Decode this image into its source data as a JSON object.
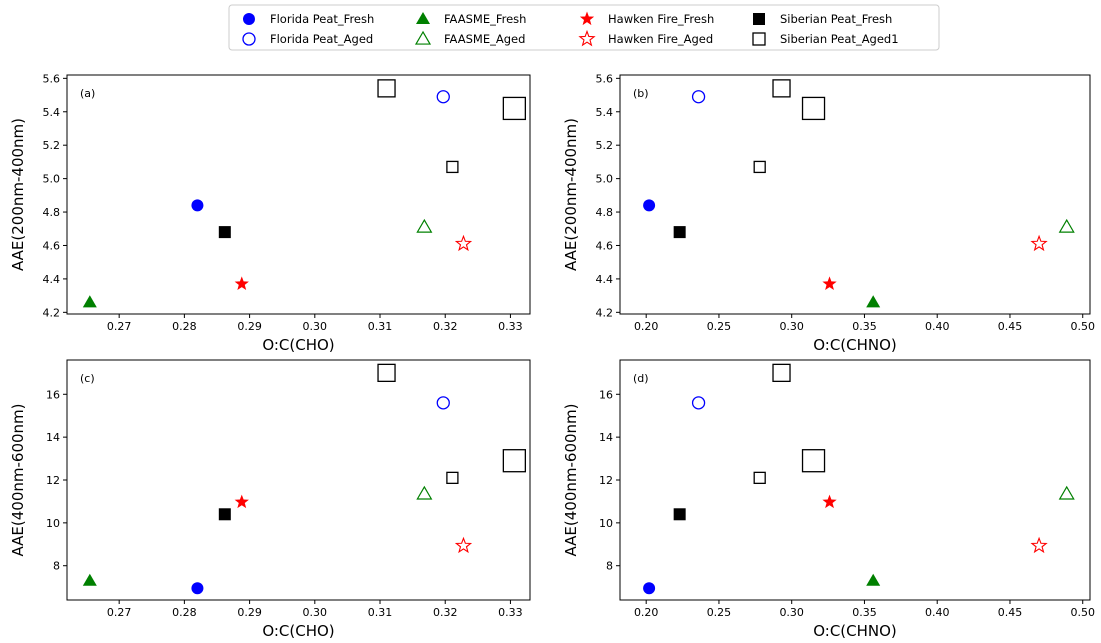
{
  "legend": [
    {
      "name": "Florida Peat_Fresh",
      "marker": "circle",
      "color": "#0000ff",
      "filled": true
    },
    {
      "name": "Florida Peat_Aged",
      "marker": "circle",
      "color": "#0000ff",
      "filled": false
    },
    {
      "name": "FAASME_Fresh",
      "marker": "triangle",
      "color": "#008000",
      "filled": true
    },
    {
      "name": "FAASME_Aged",
      "marker": "triangle",
      "color": "#008000",
      "filled": false
    },
    {
      "name": "Hawken Fire_Fresh",
      "marker": "star",
      "color": "#ff0000",
      "filled": true
    },
    {
      "name": "Hawken Fire_Aged",
      "marker": "star",
      "color": "#ff0000",
      "filled": false
    },
    {
      "name": "Siberian Peat_Fresh",
      "marker": "square",
      "color": "#000000",
      "filled": true
    },
    {
      "name": "Siberian Peat_Aged1",
      "marker": "square",
      "color": "#000000",
      "filled": false
    }
  ],
  "chart_data": [
    {
      "type": "scatter",
      "panel_label": "(a)",
      "xlabel": "O:C(CHO)",
      "ylabel": "AAE(200nm-400nm)",
      "xlim": [
        0.262,
        0.333
      ],
      "ylim": [
        4.19,
        5.62
      ],
      "xticks": [
        0.27,
        0.28,
        0.29,
        0.3,
        0.31,
        0.32,
        0.33
      ],
      "xtick_labels": [
        "0.27",
        "0.28",
        "0.29",
        "0.30",
        "0.31",
        "0.32",
        "0.33"
      ],
      "yticks": [
        4.2,
        4.4,
        4.6,
        4.8,
        5.0,
        5.2,
        5.4,
        5.6
      ],
      "ytick_labels": [
        "4.2",
        "4.4",
        "4.6",
        "4.8",
        "5.0",
        "5.2",
        "5.4",
        "5.6"
      ],
      "points": [
        {
          "series": "Florida Peat_Fresh",
          "x": 0.282,
          "y": 4.84
        },
        {
          "series": "Florida Peat_Aged",
          "x": 0.3197,
          "y": 5.49
        },
        {
          "series": "FAASME_Fresh",
          "x": 0.2655,
          "y": 4.26
        },
        {
          "series": "FAASME_Aged",
          "x": 0.3168,
          "y": 4.71
        },
        {
          "series": "Hawken Fire_Fresh",
          "x": 0.2888,
          "y": 4.37
        },
        {
          "series": "Hawken Fire_Aged",
          "x": 0.3228,
          "y": 4.61
        },
        {
          "series": "Siberian Peat_Fresh",
          "x": 0.2862,
          "y": 4.68
        },
        {
          "series": "Siberian Peat_Aged1",
          "x": 0.311,
          "y": 5.54,
          "size": "medium"
        },
        {
          "series": "Siberian Peat_Aged1",
          "x": 0.3211,
          "y": 5.07,
          "size": "small"
        },
        {
          "series": "Siberian Peat_Aged1",
          "x": 0.3306,
          "y": 5.42,
          "size": "large"
        }
      ]
    },
    {
      "type": "scatter",
      "panel_label": "(b)",
      "xlabel": "O:C(CHNO)",
      "ylabel": "AAE(200nm-400nm)",
      "xlim": [
        0.182,
        0.505
      ],
      "ylim": [
        4.19,
        5.62
      ],
      "xticks": [
        0.2,
        0.25,
        0.3,
        0.35,
        0.4,
        0.45,
        0.5
      ],
      "xtick_labels": [
        "0.20",
        "0.25",
        "0.30",
        "0.35",
        "0.40",
        "0.45",
        "0.50"
      ],
      "yticks": [
        4.2,
        4.4,
        4.6,
        4.8,
        5.0,
        5.2,
        5.4,
        5.6
      ],
      "ytick_labels": [
        "4.2",
        "4.4",
        "4.6",
        "4.8",
        "5.0",
        "5.2",
        "5.4",
        "5.6"
      ],
      "points": [
        {
          "series": "Florida Peat_Fresh",
          "x": 0.202,
          "y": 4.84
        },
        {
          "series": "Florida Peat_Aged",
          "x": 0.236,
          "y": 5.49
        },
        {
          "series": "FAASME_Fresh",
          "x": 0.356,
          "y": 4.26
        },
        {
          "series": "FAASME_Aged",
          "x": 0.489,
          "y": 4.71
        },
        {
          "series": "Hawken Fire_Fresh",
          "x": 0.326,
          "y": 4.37
        },
        {
          "series": "Hawken Fire_Aged",
          "x": 0.47,
          "y": 4.61
        },
        {
          "series": "Siberian Peat_Fresh",
          "x": 0.223,
          "y": 4.68
        },
        {
          "series": "Siberian Peat_Aged1",
          "x": 0.293,
          "y": 5.54,
          "size": "medium"
        },
        {
          "series": "Siberian Peat_Aged1",
          "x": 0.278,
          "y": 5.07,
          "size": "small"
        },
        {
          "series": "Siberian Peat_Aged1",
          "x": 0.315,
          "y": 5.42,
          "size": "large"
        }
      ]
    },
    {
      "type": "scatter",
      "panel_label": "(c)",
      "xlabel": "O:C(CHO)",
      "ylabel": "AAE(400nm-600nm)",
      "xlim": [
        0.262,
        0.333
      ],
      "ylim": [
        6.4,
        17.6
      ],
      "xticks": [
        0.27,
        0.28,
        0.29,
        0.3,
        0.31,
        0.32,
        0.33
      ],
      "xtick_labels": [
        "0.27",
        "0.28",
        "0.29",
        "0.30",
        "0.31",
        "0.32",
        "0.33"
      ],
      "yticks": [
        8,
        10,
        12,
        14,
        16
      ],
      "ytick_labels": [
        "8",
        "10",
        "12",
        "14",
        "16"
      ],
      "points": [
        {
          "series": "Florida Peat_Fresh",
          "x": 0.282,
          "y": 6.95
        },
        {
          "series": "Florida Peat_Aged",
          "x": 0.3197,
          "y": 15.6
        },
        {
          "series": "FAASME_Fresh",
          "x": 0.2655,
          "y": 7.3
        },
        {
          "series": "FAASME_Aged",
          "x": 0.3168,
          "y": 11.35
        },
        {
          "series": "Hawken Fire_Fresh",
          "x": 0.2888,
          "y": 10.97
        },
        {
          "series": "Hawken Fire_Aged",
          "x": 0.3228,
          "y": 8.93
        },
        {
          "series": "Siberian Peat_Fresh",
          "x": 0.2862,
          "y": 10.4
        },
        {
          "series": "Siberian Peat_Aged1",
          "x": 0.311,
          "y": 17.0,
          "size": "medium"
        },
        {
          "series": "Siberian Peat_Aged1",
          "x": 0.3211,
          "y": 12.1,
          "size": "small"
        },
        {
          "series": "Siberian Peat_Aged1",
          "x": 0.3306,
          "y": 12.9,
          "size": "large"
        }
      ]
    },
    {
      "type": "scatter",
      "panel_label": "(d)",
      "xlabel": "O:C(CHNO)",
      "ylabel": "AAE(400nm-600nm)",
      "xlim": [
        0.182,
        0.505
      ],
      "ylim": [
        6.4,
        17.6
      ],
      "xticks": [
        0.2,
        0.25,
        0.3,
        0.35,
        0.4,
        0.45,
        0.5
      ],
      "xtick_labels": [
        "0.20",
        "0.25",
        "0.30",
        "0.35",
        "0.40",
        "0.45",
        "0.50"
      ],
      "yticks": [
        8,
        10,
        12,
        14,
        16
      ],
      "ytick_labels": [
        "8",
        "10",
        "12",
        "14",
        "16"
      ],
      "points": [
        {
          "series": "Florida Peat_Fresh",
          "x": 0.202,
          "y": 6.95
        },
        {
          "series": "Florida Peat_Aged",
          "x": 0.236,
          "y": 15.6
        },
        {
          "series": "FAASME_Fresh",
          "x": 0.356,
          "y": 7.3
        },
        {
          "series": "FAASME_Aged",
          "x": 0.489,
          "y": 11.35
        },
        {
          "series": "Hawken Fire_Fresh",
          "x": 0.326,
          "y": 10.97
        },
        {
          "series": "Hawken Fire_Aged",
          "x": 0.47,
          "y": 8.93
        },
        {
          "series": "Siberian Peat_Fresh",
          "x": 0.223,
          "y": 10.4
        },
        {
          "series": "Siberian Peat_Aged1",
          "x": 0.293,
          "y": 17.0,
          "size": "medium"
        },
        {
          "series": "Siberian Peat_Aged1",
          "x": 0.278,
          "y": 12.1,
          "size": "small"
        },
        {
          "series": "Siberian Peat_Aged1",
          "x": 0.315,
          "y": 12.9,
          "size": "large"
        }
      ]
    }
  ]
}
